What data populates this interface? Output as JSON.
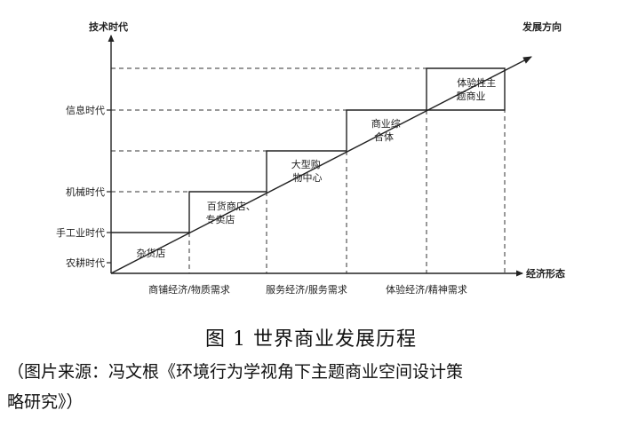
{
  "axes": {
    "y_title": "技术时代",
    "x_title": "经济形态",
    "arrow_label": "发展方向"
  },
  "eras": [
    "农耕时代",
    "手工业时代",
    "机械时代",
    "信息时代"
  ],
  "economy_types": [
    "商铺经济/物质需求",
    "服务经济/服务需求",
    "体验经济/精神需求"
  ],
  "stages": [
    {
      "lines": [
        "杂货店"
      ]
    },
    {
      "lines": [
        "百货商店、",
        "专卖店"
      ]
    },
    {
      "lines": [
        "大型购",
        "物中心"
      ]
    },
    {
      "lines": [
        "商业综",
        "合体"
      ]
    },
    {
      "lines": [
        "体验性主",
        "题商业"
      ]
    }
  ],
  "figure": {
    "title": "图 1  世界商业发展历程",
    "source_line_1": "（图片来源：冯文根《环境行为学视角下主题商业空间设计策",
    "source_line_2": "略研究》）"
  }
}
